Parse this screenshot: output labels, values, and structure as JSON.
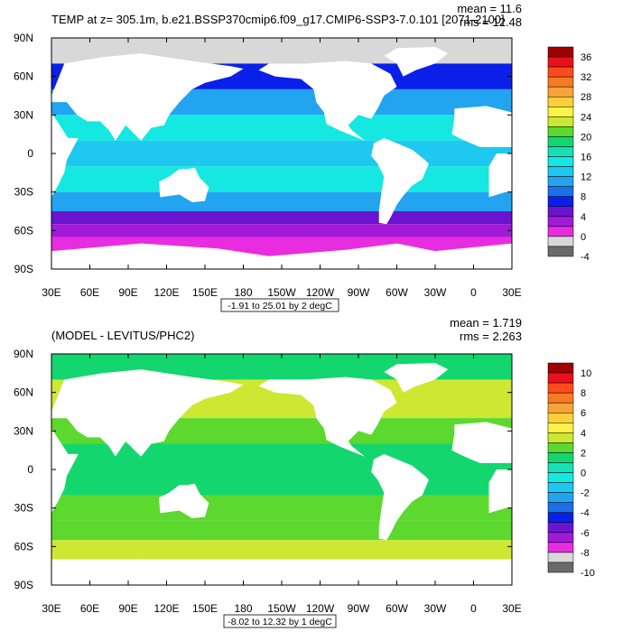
{
  "chart_data": [
    {
      "type": "heatmap",
      "title": "TEMP at z= 305.1m, b.e21.BSSP370cmip6.f09_g17.CMIP6-SSP3-7.0.101 [2071-2100]",
      "stats": {
        "mean": "mean = 11.6",
        "rms": "rms = 12.48"
      },
      "subtitle": "-1.91 to 25.01 by 2 degC",
      "x_ticks": [
        "30E",
        "60E",
        "90E",
        "120E",
        "150E",
        "180",
        "150W",
        "120W",
        "90W",
        "60W",
        "30W",
        "0",
        "30E"
      ],
      "y_ticks": [
        "90N",
        "60N",
        "30N",
        "0",
        "30S",
        "60S",
        "90S"
      ],
      "xlim": [
        30,
        390
      ],
      "ylim": [
        -90,
        90
      ],
      "colorbar": {
        "labels": [
          "36",
          "32",
          "28",
          "24",
          "20",
          "16",
          "12",
          "8",
          "4",
          "0",
          "-4"
        ],
        "colors": [
          "#a00000",
          "#e8101a",
          "#ff4a1e",
          "#f47a24",
          "#f7a33a",
          "#fad03a",
          "#fbf34a",
          "#cde832",
          "#5cd82e",
          "#14d66e",
          "#16e0b4",
          "#14e8e0",
          "#1ec8f0",
          "#22a4f0",
          "#1a70e8",
          "#0a20e8",
          "#6a14d0",
          "#a01ad8",
          "#e82ce0",
          "#d8d8d8",
          "#6a6a6a"
        ]
      },
      "zones": [
        {
          "lat": [
            70,
            90
          ],
          "value": -1
        },
        {
          "lat": [
            50,
            70
          ],
          "value": 6
        },
        {
          "lat": [
            30,
            50
          ],
          "value": 11
        },
        {
          "lat": [
            10,
            30
          ],
          "value": 14
        },
        {
          "lat": [
            -10,
            10
          ],
          "value": 13
        },
        {
          "lat": [
            -30,
            -10
          ],
          "value": 14
        },
        {
          "lat": [
            -45,
            -30
          ],
          "value": 10
        },
        {
          "lat": [
            -55,
            -45
          ],
          "value": 5
        },
        {
          "lat": [
            -65,
            -55
          ],
          "value": 2
        },
        {
          "lat": [
            -80,
            -65
          ],
          "value": 0
        }
      ]
    },
    {
      "type": "heatmap",
      "title": "(MODEL - LEVITUS/PHC2)",
      "stats": {
        "mean": "mean = 1.719",
        "rms": "rms = 2.263"
      },
      "subtitle": "-8.02 to 12.32 by 1 degC",
      "x_ticks": [
        "30E",
        "60E",
        "90E",
        "120E",
        "150E",
        "180",
        "150W",
        "120W",
        "90W",
        "60W",
        "30W",
        "0",
        "30E"
      ],
      "y_ticks": [
        "90N",
        "60N",
        "30N",
        "0",
        "30S",
        "60S",
        "90S"
      ],
      "xlim": [
        30,
        390
      ],
      "ylim": [
        -90,
        90
      ],
      "colorbar": {
        "labels": [
          "10",
          "8",
          "6",
          "4",
          "2",
          "0",
          "-2",
          "-4",
          "-6",
          "-8",
          "-10"
        ],
        "colors": [
          "#a00000",
          "#e8101a",
          "#ff4a1e",
          "#f47a24",
          "#f7a33a",
          "#fad03a",
          "#fbf34a",
          "#cde832",
          "#5cd82e",
          "#14d66e",
          "#16e0b4",
          "#14e8e0",
          "#1ec8f0",
          "#22a4f0",
          "#1a70e8",
          "#0a20e8",
          "#6a14d0",
          "#a01ad8",
          "#e82ce0",
          "#d8d8d8",
          "#6a6a6a"
        ]
      },
      "zones": [
        {
          "lat": [
            70,
            90
          ],
          "value": 1
        },
        {
          "lat": [
            40,
            70
          ],
          "value": 3
        },
        {
          "lat": [
            20,
            40
          ],
          "value": 2
        },
        {
          "lat": [
            -20,
            20
          ],
          "value": 1
        },
        {
          "lat": [
            -40,
            -20
          ],
          "value": 1.5
        },
        {
          "lat": [
            -55,
            -40
          ],
          "value": 2
        },
        {
          "lat": [
            -70,
            -55
          ],
          "value": 3
        }
      ]
    }
  ]
}
